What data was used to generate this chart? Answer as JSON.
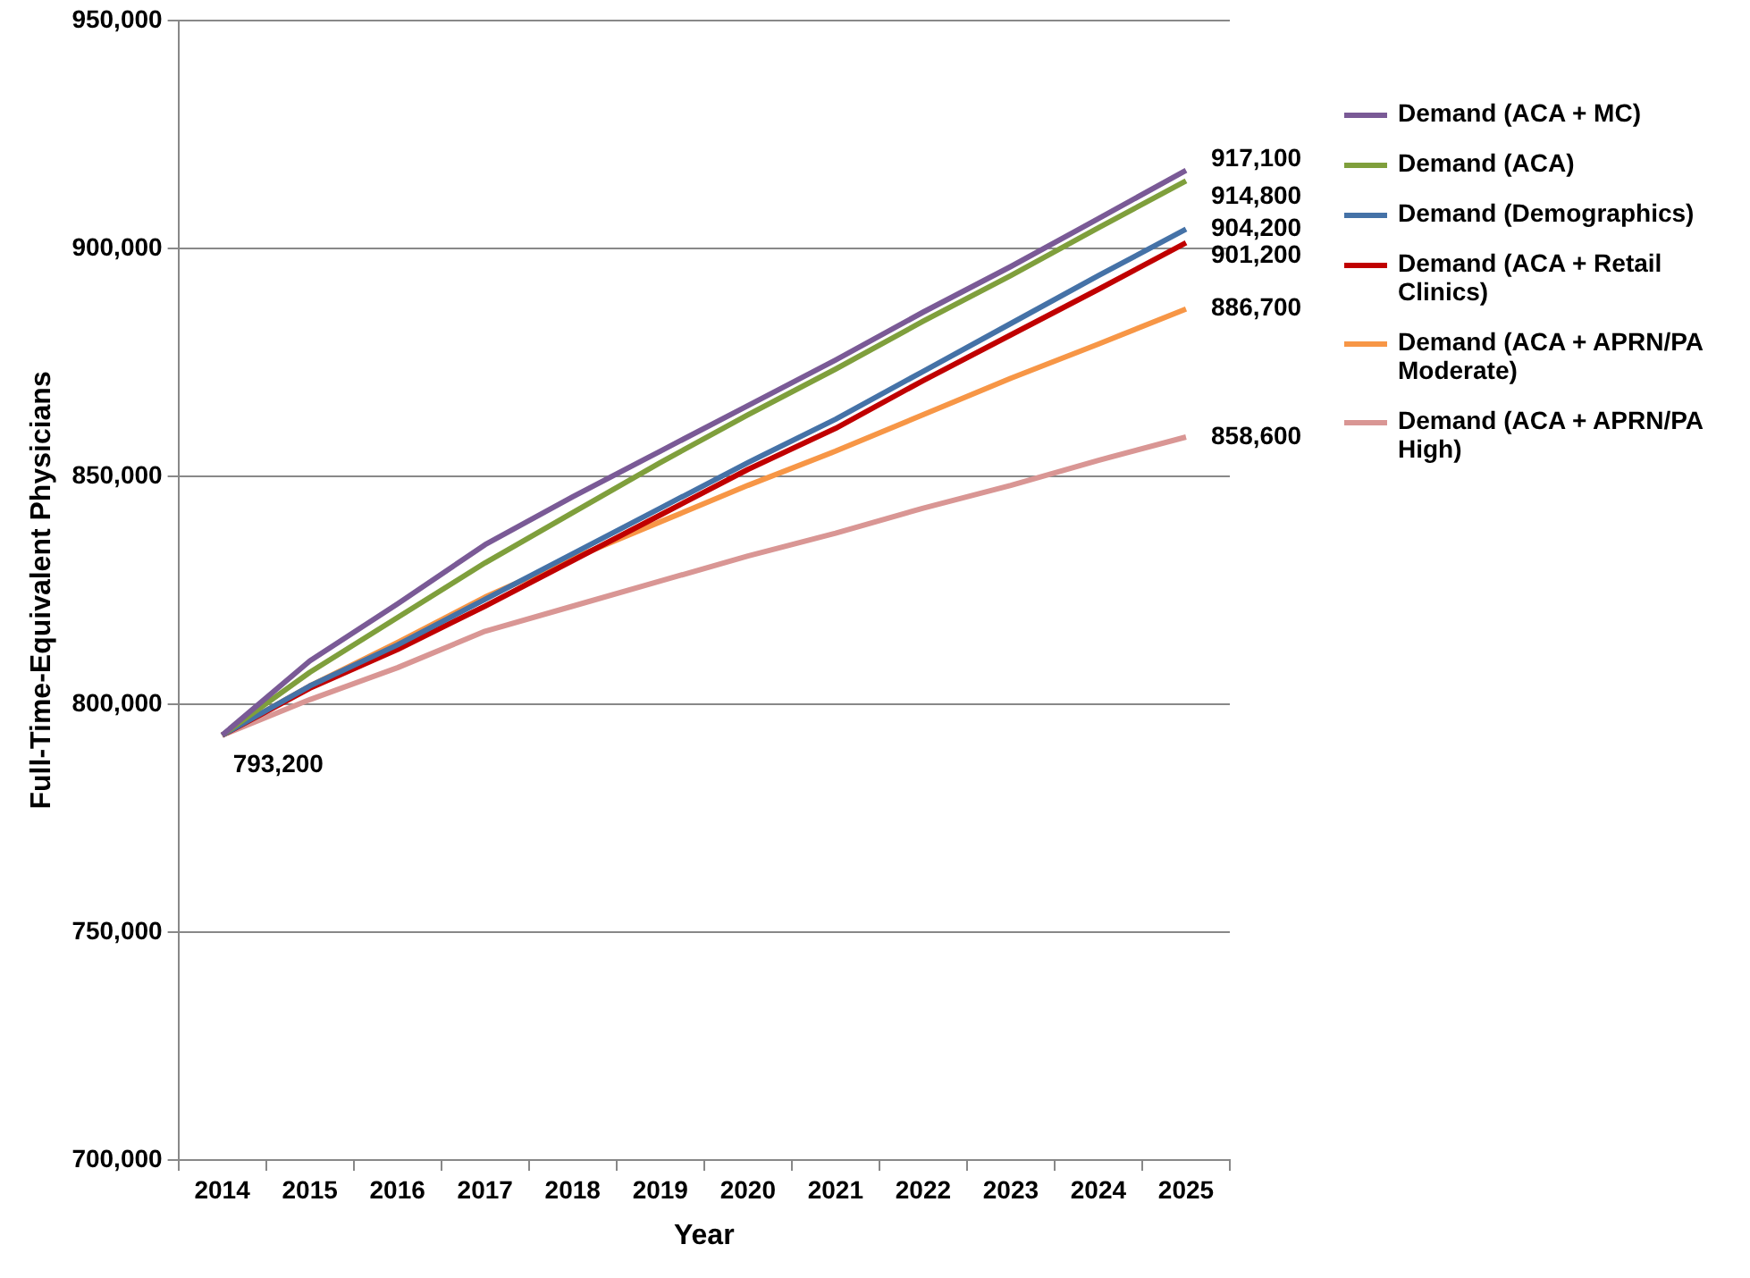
{
  "chart_data": {
    "type": "line",
    "xlabel": "Year",
    "ylabel": "Full-Time-Equivalent Physicians",
    "categories": [
      "2014",
      "2015",
      "2016",
      "2017",
      "2018",
      "2019",
      "2020",
      "2021",
      "2022",
      "2023",
      "2024",
      "2025"
    ],
    "series": [
      {
        "name": "Demand (ACA + MC)",
        "color": "#7a5a96",
        "values": [
          793200,
          809500,
          822000,
          835000,
          845500,
          855500,
          865500,
          875500,
          886000,
          896000,
          906500,
          917100
        ]
      },
      {
        "name": "Demand (ACA)",
        "color": "#7f9f3c",
        "values": [
          793200,
          807000,
          819000,
          831000,
          842000,
          853000,
          863500,
          873500,
          884000,
          894000,
          904500,
          914800
        ]
      },
      {
        "name": "Demand (Demographics)",
        "color": "#4572a7",
        "values": [
          793200,
          804000,
          813000,
          823000,
          833000,
          843000,
          853000,
          862500,
          873000,
          883500,
          894000,
          904200
        ]
      },
      {
        "name": "Demand (ACA + Retail Clinics)",
        "color": "#c00000",
        "values": [
          793200,
          803500,
          812000,
          821500,
          831500,
          841500,
          851500,
          860500,
          871000,
          881000,
          891000,
          901200
        ]
      },
      {
        "name": "Demand (ACA + APRN/PA Moderate)",
        "color": "#f79646",
        "values": [
          793200,
          804000,
          813500,
          823500,
          832000,
          840000,
          848000,
          855500,
          863500,
          871500,
          879000,
          886700
        ]
      },
      {
        "name": "Demand (ACA + APRN/PA High)",
        "color": "#d99694",
        "values": [
          793200,
          801000,
          808000,
          816000,
          821500,
          827000,
          832500,
          837500,
          843000,
          848000,
          853500,
          858600
        ]
      }
    ],
    "ylim": [
      700000,
      950000
    ],
    "yticks": [
      {
        "value": 700000,
        "label": "700,000"
      },
      {
        "value": 750000,
        "label": "750,000"
      },
      {
        "value": 800000,
        "label": "800,000"
      },
      {
        "value": 850000,
        "label": "850,000"
      },
      {
        "value": 900000,
        "label": "900,000"
      },
      {
        "value": 950000,
        "label": "950,000"
      }
    ],
    "grid": "y",
    "legend": "right",
    "marker": "none",
    "line_style": "solid",
    "annotations": [
      {
        "text": "917,100",
        "x": "2025",
        "y": 917100
      },
      {
        "text": "914,800",
        "x": "2025",
        "y": 914800
      },
      {
        "text": "904,200",
        "x": "2025",
        "y": 904200
      },
      {
        "text": "901,200",
        "x": "2025",
        "y": 901200
      },
      {
        "text": "886,700",
        "x": "2025",
        "y": 886700
      },
      {
        "text": "858,600",
        "x": "2025",
        "y": 858600
      },
      {
        "text": "793,200",
        "x": "2014",
        "y": 793200
      }
    ]
  }
}
